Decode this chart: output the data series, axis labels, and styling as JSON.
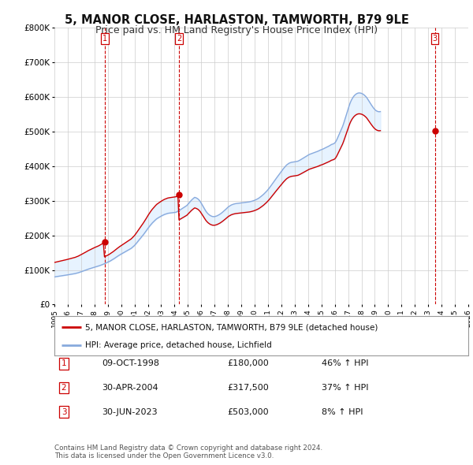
{
  "title": "5, MANOR CLOSE, HARLASTON, TAMWORTH, B79 9LE",
  "subtitle": "Price paid vs. HM Land Registry's House Price Index (HPI)",
  "title_fontsize": 10.5,
  "subtitle_fontsize": 9,
  "background_color": "#ffffff",
  "plot_background": "#ffffff",
  "grid_color": "#cccccc",
  "ylim": [
    0,
    800000
  ],
  "yticks": [
    0,
    100000,
    200000,
    300000,
    400000,
    500000,
    600000,
    700000,
    800000
  ],
  "ytick_labels": [
    "£0",
    "£100K",
    "£200K",
    "£300K",
    "£400K",
    "£500K",
    "£600K",
    "£700K",
    "£800K"
  ],
  "xlim_start": 1995,
  "xlim_end": 2026,
  "xtick_years": [
    1995,
    1996,
    1997,
    1998,
    1999,
    2000,
    2001,
    2002,
    2003,
    2004,
    2005,
    2006,
    2007,
    2008,
    2009,
    2010,
    2011,
    2012,
    2013,
    2014,
    2015,
    2016,
    2017,
    2018,
    2019,
    2020,
    2021,
    2022,
    2023,
    2024,
    2025,
    2026
  ],
  "sale_dates": [
    1998.77,
    2004.33,
    2023.5
  ],
  "sale_prices": [
    180000,
    317500,
    503000
  ],
  "sale_labels": [
    "1",
    "2",
    "3"
  ],
  "sale_color": "#cc0000",
  "hpi_color": "#88aadd",
  "red_line_color": "#cc0000",
  "vline_color": "#cc0000",
  "fill_color": "#ddeeff",
  "legend_label_red": "5, MANOR CLOSE, HARLASTON, TAMWORTH, B79 9LE (detached house)",
  "legend_label_blue": "HPI: Average price, detached house, Lichfield",
  "table_rows": [
    {
      "num": "1",
      "date": "09-OCT-1998",
      "price": "£180,000",
      "hpi": "46% ↑ HPI"
    },
    {
      "num": "2",
      "date": "30-APR-2004",
      "price": "£317,500",
      "hpi": "37% ↑ HPI"
    },
    {
      "num": "3",
      "date": "30-JUN-2023",
      "price": "£503,000",
      "hpi": "8% ↑ HPI"
    }
  ],
  "footer": "Contains HM Land Registry data © Crown copyright and database right 2024.\nThis data is licensed under the Open Government Licence v3.0.",
  "hpi_index": [
    100.0,
    100.6,
    101.2,
    101.8,
    102.4,
    103.0,
    103.6,
    104.2,
    104.8,
    105.4,
    106.1,
    106.8,
    107.5,
    108.2,
    108.9,
    109.6,
    110.3,
    111.0,
    111.7,
    112.4,
    113.7,
    114.5,
    115.8,
    117.2,
    118.6,
    120.1,
    121.5,
    123.0,
    124.4,
    125.8,
    127.5,
    128.8,
    130.1,
    131.5,
    132.8,
    134.0,
    135.2,
    136.3,
    137.5,
    138.5,
    139.8,
    141.3,
    142.8,
    144.3,
    146.0,
    147.8,
    149.5,
    151.2,
    153.0,
    154.8,
    157.1,
    159.5,
    161.8,
    164.2,
    167.0,
    169.8,
    172.5,
    175.2,
    177.8,
    180.2,
    182.5,
    185.0,
    187.3,
    189.5,
    191.8,
    194.2,
    196.5,
    198.8,
    201.0,
    203.2,
    206.5,
    210.1,
    213.8,
    218.2,
    223.1,
    228.1,
    233.2,
    238.2,
    243.0,
    247.5,
    252.8,
    258.2,
    263.5,
    269.1,
    275.1,
    280.5,
    285.5,
    290.5,
    295.0,
    299.0,
    303.2,
    306.8,
    310.2,
    312.8,
    315.2,
    317.5,
    319.8,
    322.0,
    324.0,
    325.8,
    327.2,
    328.5,
    329.8,
    330.5,
    331.0,
    331.5,
    332.0,
    332.5,
    333.0,
    333.5,
    335.2,
    337.5,
    339.8,
    342.2,
    344.8,
    347.5,
    350.2,
    352.8,
    355.5,
    358.0,
    362.5,
    367.2,
    372.0,
    376.5,
    380.5,
    384.0,
    387.5,
    386.5,
    384.5,
    382.0,
    378.0,
    373.0,
    366.5,
    359.5,
    352.5,
    345.5,
    338.5,
    333.0,
    328.5,
    325.0,
    322.0,
    320.0,
    318.5,
    318.0,
    318.0,
    319.2,
    320.5,
    322.5,
    324.8,
    327.2,
    330.2,
    333.5,
    337.0,
    340.5,
    344.2,
    348.0,
    352.0,
    355.0,
    357.5,
    360.0,
    361.5,
    363.0,
    364.0,
    365.0,
    365.5,
    366.0,
    366.5,
    367.0,
    367.5,
    368.0,
    368.5,
    369.0,
    369.5,
    370.0,
    370.5,
    371.2,
    372.0,
    373.0,
    374.2,
    375.5,
    377.0,
    378.8,
    380.8,
    383.0,
    385.5,
    388.5,
    391.8,
    395.0,
    398.5,
    402.5,
    406.5,
    410.8,
    415.5,
    420.5,
    425.8,
    431.5,
    437.2,
    442.8,
    448.5,
    454.0,
    459.5,
    465.0,
    470.5,
    476.0,
    481.5,
    487.0,
    492.0,
    497.0,
    501.5,
    505.5,
    508.5,
    511.2,
    512.8,
    514.2,
    515.0,
    515.5,
    516.0,
    516.8,
    517.5,
    518.5,
    520.5,
    522.8,
    525.2,
    527.5,
    530.0,
    532.5,
    535.0,
    537.5,
    540.0,
    542.5,
    544.0,
    545.5,
    547.0,
    548.5,
    550.0,
    551.5,
    553.0,
    554.5,
    556.5,
    558.5,
    560.0,
    561.5,
    563.5,
    565.5,
    567.5,
    569.5,
    571.5,
    573.5,
    576.0,
    578.5,
    580.0,
    581.5,
    584.0,
    589.5,
    597.5,
    606.8,
    616.2,
    625.5,
    634.5,
    643.5,
    655.0,
    667.5,
    680.5,
    693.5,
    706.5,
    719.5,
    730.5,
    739.5,
    746.5,
    752.5,
    757.0,
    760.5,
    763.0,
    764.5,
    765.0,
    764.5,
    763.5,
    761.5,
    759.0,
    755.5,
    751.5,
    746.5,
    740.0,
    733.5,
    727.0,
    721.0,
    715.0,
    709.5,
    705.0,
    701.5,
    699.0,
    697.5,
    697.0,
    697.5
  ],
  "hpi_base": 80000
}
